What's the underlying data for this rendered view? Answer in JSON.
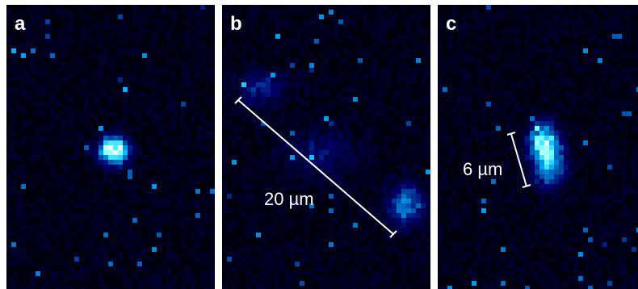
{
  "panels": [
    {
      "id": "a",
      "letter": "a"
    },
    {
      "id": "b",
      "letter": "b",
      "scale_bar_label": "20 µm"
    },
    {
      "id": "c",
      "letter": "c",
      "scale_bar_label": "6 µm"
    }
  ],
  "colors": {
    "background": "#00000f",
    "glow": "#1a6cff",
    "core": "#ffffff",
    "scale_bar": "#ffffff"
  }
}
